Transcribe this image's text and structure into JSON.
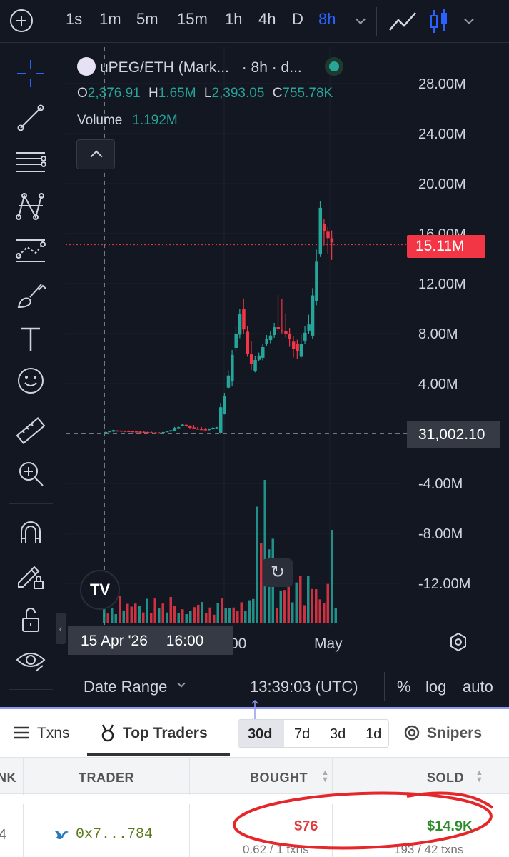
{
  "topbar": {
    "timeframes": [
      "1s",
      "1m",
      "5m",
      "15m",
      "1h",
      "4h",
      "D",
      "8h"
    ],
    "active_timeframe": "8h"
  },
  "legend": {
    "symbol": "uPEG/ETH (Mark...",
    "interval": "· 8h · d...",
    "open_label": "O",
    "open": "2,376.91",
    "high_label": "H",
    "high": "1.65M",
    "low_label": "L",
    "low": "2,393.05",
    "close_label": "C",
    "close": "755.78K",
    "volume_label": "Volume",
    "volume": "1.192M"
  },
  "y_axis": {
    "labels": [
      "28.00M",
      "24.00M",
      "20.00M",
      "16.00M",
      "12.00M",
      "8.00M",
      "4.00M",
      "-4.00M",
      "-8.00M",
      "-12.00M"
    ],
    "current_price": "15.11M",
    "crosshair_price": "31,002.10"
  },
  "x_axis": {
    "crosshair_date": "15 Apr '26",
    "crosshair_time": "16:00",
    "partial_label": "00",
    "label_may": "May"
  },
  "chart_data": {
    "type": "candlestick",
    "title": "uPEG/ETH (Mark... · 8h · d...",
    "ylim": [
      -14000000,
      30000000
    ],
    "candles_approx_m": [
      [
        0.03,
        0.3,
        0.0,
        0.25
      ],
      [
        0.25,
        0.3,
        0.1,
        0.2
      ],
      [
        0.2,
        0.25,
        0.1,
        0.15
      ],
      [
        0.15,
        0.2,
        0.05,
        0.1
      ],
      [
        0.1,
        0.15,
        0.02,
        0.05
      ],
      [
        0.05,
        0.3,
        0.02,
        0.25
      ],
      [
        0.25,
        0.8,
        0.2,
        0.7
      ],
      [
        0.7,
        0.9,
        0.3,
        0.4
      ],
      [
        0.4,
        0.6,
        0.2,
        0.3
      ],
      [
        0.3,
        0.6,
        0.2,
        0.5
      ],
      [
        0.5,
        5.0,
        0.4,
        4.5
      ],
      [
        4.5,
        10.5,
        4.0,
        9.5
      ],
      [
        9.5,
        10.8,
        4.5,
        5.0
      ],
      [
        5.0,
        7.5,
        4.8,
        7.0
      ],
      [
        7.0,
        9.0,
        6.5,
        8.5
      ],
      [
        8.5,
        12.5,
        7.5,
        8.0
      ],
      [
        8.0,
        8.5,
        5.8,
        6.5
      ],
      [
        6.5,
        10.0,
        6.2,
        9.0
      ],
      [
        9.0,
        18.5,
        8.5,
        17.0
      ],
      [
        17.0,
        18.0,
        13.0,
        15.11
      ]
    ],
    "volume_bars": 60
  },
  "bottombar": {
    "date_range": "Date Range",
    "clock": "13:39:03 (UTC)",
    "percent": "%",
    "log": "log",
    "auto": "auto"
  },
  "panel": {
    "tabs": {
      "txns": "Txns",
      "top_traders": "Top Traders",
      "snipers": "Snipers"
    },
    "periods": [
      "30d",
      "7d",
      "3d",
      "1d"
    ],
    "active_period": "30d",
    "columns": {
      "rank": "NK",
      "trader": "TRADER",
      "bought": "BOUGHT",
      "sold": "SOLD"
    },
    "rows": [
      {
        "rank": "4",
        "trader": "0x7...784",
        "bought": "$76",
        "bought_sub": "0.62 / 1 txns",
        "sold": "$14.9K",
        "sold_sub": "193 / 42 txns"
      }
    ]
  },
  "colors": {
    "up": "#26a69a",
    "down": "#f23645",
    "accent": "#2962ff",
    "annotation": "#e5262a"
  }
}
